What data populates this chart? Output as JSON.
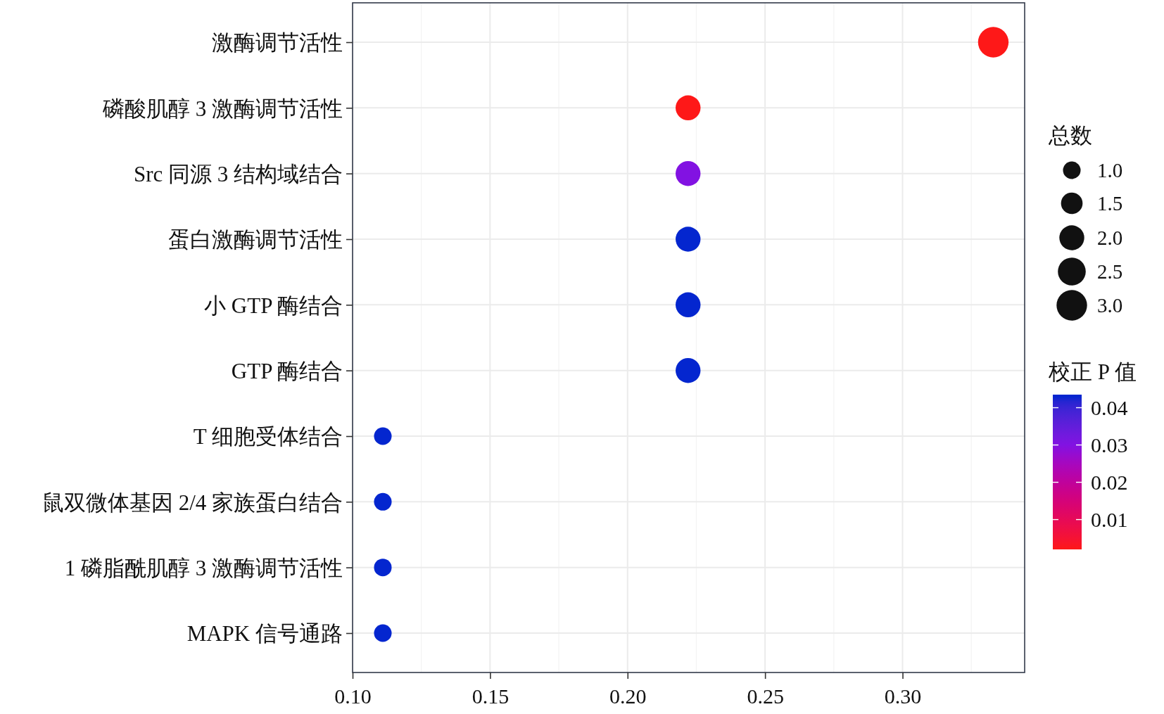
{
  "chart_data": {
    "type": "bubble",
    "orientation": "horizontal",
    "marker": "circle",
    "categories": [
      "激酶调节活性",
      "磷酸肌醇 3 激酶调节活性",
      "Src 同源 3 结构域结合",
      "蛋白激酶调节活性",
      "小 GTP 酶结合",
      "GTP 酶结合",
      "T 细胞受体结合",
      "鼠双微体基因 2/4 家族蛋白结合",
      "1 磷脂酰肌醇 3 激酶调节活性",
      "MAPK 信号通路"
    ],
    "values": [
      0.333,
      0.222,
      0.222,
      0.222,
      0.222,
      0.222,
      0.111,
      0.111,
      0.111,
      0.111
    ],
    "sizes": [
      3,
      2,
      2,
      2,
      2,
      2,
      1,
      1,
      1,
      1
    ],
    "size_legend": [
      {
        "value": 1,
        "label": "1.0"
      },
      {
        "value": 1.5,
        "label": "1.5"
      },
      {
        "value": 2,
        "label": "2.0"
      },
      {
        "value": 2.5,
        "label": "2.5"
      },
      {
        "value": 3,
        "label": "3.0"
      }
    ],
    "cvalues": [
      0.002,
      0.002,
      0.03,
      0.043,
      0.043,
      0.043,
      0.043,
      0.043,
      0.043,
      0.043
    ],
    "colors": [
      "#fe1818",
      "#fe1818",
      "#8212e2",
      "#0426cf",
      "#0426cf",
      "#0426cf",
      "#0426cf",
      "#0426cf",
      "#0426cf",
      "#0426cf"
    ],
    "clim": [
      0.002,
      0.0435
    ],
    "cticks": [
      0.01,
      0.02,
      0.03,
      0.04
    ],
    "clabel": "校正 P 值",
    "legend_title": "总数",
    "xlim": [
      0.1,
      0.3444
    ],
    "xticks": [
      {
        "value": 0.1,
        "label": "0.10"
      },
      {
        "value": 0.125,
        "label": null
      },
      {
        "value": 0.15,
        "label": "0.15"
      },
      {
        "value": 0.175,
        "label": null
      },
      {
        "value": 0.2,
        "label": "0.20"
      },
      {
        "value": 0.225,
        "label": null
      },
      {
        "value": 0.25,
        "label": "0.25"
      },
      {
        "value": 0.275,
        "label": null
      },
      {
        "value": 0.3,
        "label": "0.30"
      },
      {
        "value": 0.325,
        "label": null
      }
    ],
    "grid": true
  }
}
